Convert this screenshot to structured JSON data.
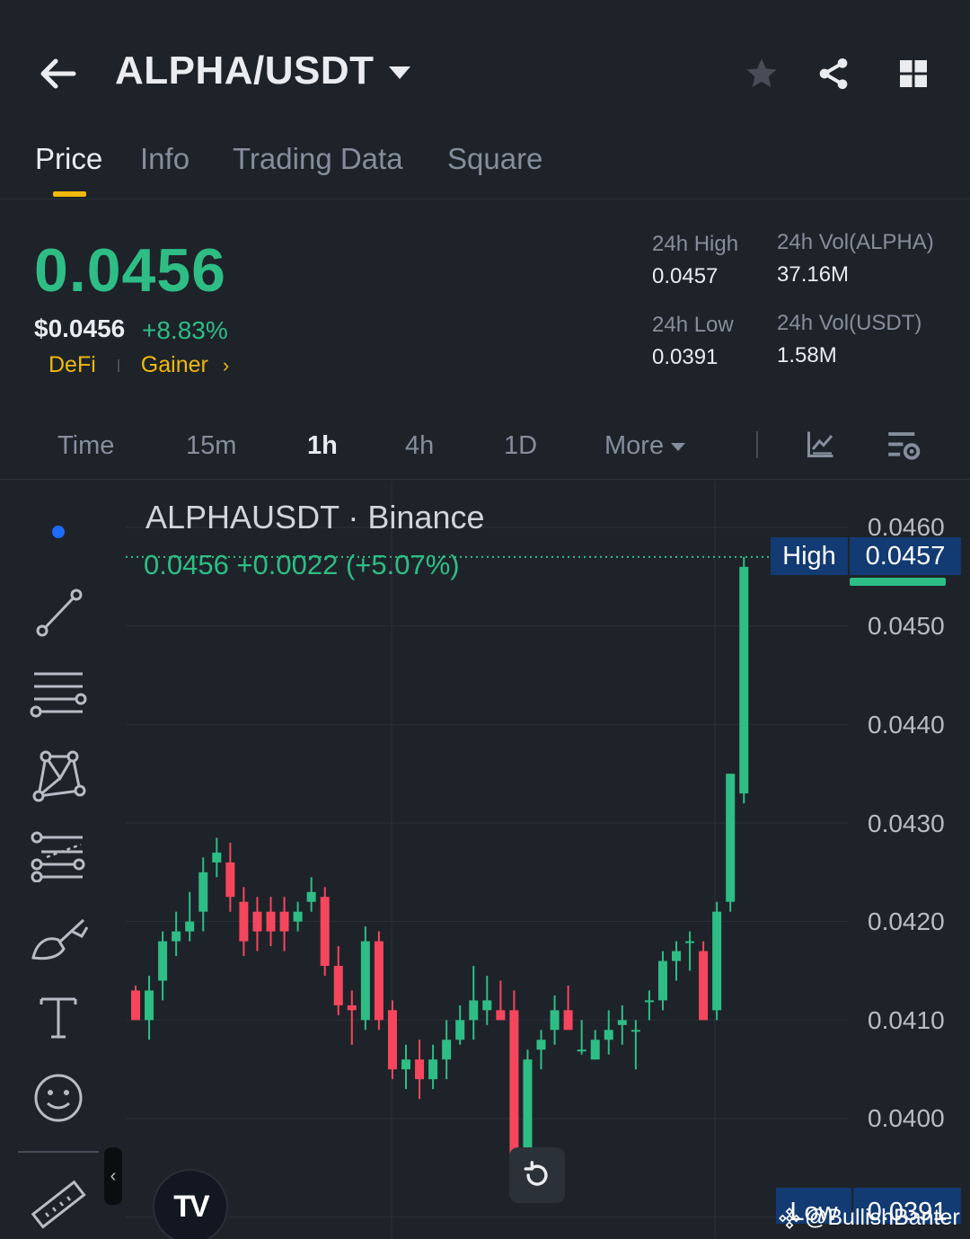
{
  "header": {
    "title": "ALPHA/USDT",
    "icons": [
      "back-arrow-icon",
      "caret-down-icon",
      "star-icon",
      "share-icon",
      "grid-icon"
    ]
  },
  "tabs": [
    {
      "label": "Price",
      "active": true
    },
    {
      "label": "Info",
      "active": false
    },
    {
      "label": "Trading Data",
      "active": false
    },
    {
      "label": "Square",
      "active": false
    }
  ],
  "ticker": {
    "last_price": "0.0456",
    "usd_price": "$0.0456",
    "change_pct": "+8.83%",
    "tags": [
      "DeFi",
      "Gainer"
    ],
    "stats": {
      "high_label": "24h High",
      "high_value": "0.0457",
      "low_label": "24h Low",
      "low_value": "0.0391",
      "vol_alpha_label": "24h Vol(ALPHA)",
      "vol_alpha_value": "37.16M",
      "vol_usdt_label": "24h Vol(USDT)",
      "vol_usdt_value": "1.58M"
    }
  },
  "intervals": [
    {
      "label": "Time",
      "active": false
    },
    {
      "label": "15m",
      "active": false
    },
    {
      "label": "1h",
      "active": true
    },
    {
      "label": "4h",
      "active": false
    },
    {
      "label": "1D",
      "active": false
    },
    {
      "label": "More",
      "active": false
    }
  ],
  "colors": {
    "up": "#2ebd85",
    "down": "#f6465d",
    "accent": "#f0b90b",
    "bg": "#1e2329",
    "badge": "#123a73"
  },
  "chart": {
    "symbol_title": "ALPHAUSDT · Binance",
    "ohlc_text": "0.0456 +0.0022 (+5.07%)",
    "high_label": "High",
    "high_value": "0.0457",
    "low_label": "Low",
    "low_value": "0.0391",
    "watermark": "@BullishBanter"
  },
  "chart_data": {
    "type": "candlestick",
    "title": "ALPHAUSDT · Binance",
    "interval": "1h",
    "y_ticks": [
      "0.0460",
      "0.0450",
      "0.0440",
      "0.0430",
      "0.0420",
      "0.0410",
      "0.0400",
      "0.0391"
    ],
    "ylim": [
      0.0389,
      0.04605
    ],
    "candles": [
      {
        "o": 0.0413,
        "h": 0.04135,
        "l": 0.041,
        "c": 0.041
      },
      {
        "o": 0.041,
        "h": 0.04145,
        "l": 0.0408,
        "c": 0.0413
      },
      {
        "o": 0.0414,
        "h": 0.0419,
        "l": 0.0412,
        "c": 0.0418
      },
      {
        "o": 0.0418,
        "h": 0.0421,
        "l": 0.04165,
        "c": 0.0419
      },
      {
        "o": 0.0419,
        "h": 0.0423,
        "l": 0.0418,
        "c": 0.042
      },
      {
        "o": 0.0421,
        "h": 0.04265,
        "l": 0.0419,
        "c": 0.0425
      },
      {
        "o": 0.0426,
        "h": 0.04285,
        "l": 0.04245,
        "c": 0.0427
      },
      {
        "o": 0.0426,
        "h": 0.0428,
        "l": 0.0421,
        "c": 0.04225
      },
      {
        "o": 0.0422,
        "h": 0.04235,
        "l": 0.04165,
        "c": 0.0418
      },
      {
        "o": 0.0421,
        "h": 0.04225,
        "l": 0.0417,
        "c": 0.0419
      },
      {
        "o": 0.0421,
        "h": 0.04225,
        "l": 0.04175,
        "c": 0.0419
      },
      {
        "o": 0.0421,
        "h": 0.04225,
        "l": 0.0417,
        "c": 0.0419
      },
      {
        "o": 0.042,
        "h": 0.0422,
        "l": 0.0419,
        "c": 0.0421
      },
      {
        "o": 0.0422,
        "h": 0.04245,
        "l": 0.0421,
        "c": 0.0423
      },
      {
        "o": 0.04225,
        "h": 0.04235,
        "l": 0.04145,
        "c": 0.04155
      },
      {
        "o": 0.04155,
        "h": 0.04175,
        "l": 0.04105,
        "c": 0.04115
      },
      {
        "o": 0.04115,
        "h": 0.0413,
        "l": 0.04075,
        "c": 0.0411
      },
      {
        "o": 0.041,
        "h": 0.04195,
        "l": 0.0409,
        "c": 0.0418
      },
      {
        "o": 0.0418,
        "h": 0.0419,
        "l": 0.0409,
        "c": 0.041
      },
      {
        "o": 0.0411,
        "h": 0.0412,
        "l": 0.0404,
        "c": 0.0405
      },
      {
        "o": 0.0405,
        "h": 0.04075,
        "l": 0.0403,
        "c": 0.0406
      },
      {
        "o": 0.0406,
        "h": 0.0408,
        "l": 0.0402,
        "c": 0.0404
      },
      {
        "o": 0.0404,
        "h": 0.04075,
        "l": 0.0403,
        "c": 0.0406
      },
      {
        "o": 0.0406,
        "h": 0.041,
        "l": 0.0404,
        "c": 0.0408
      },
      {
        "o": 0.0408,
        "h": 0.04115,
        "l": 0.04075,
        "c": 0.041
      },
      {
        "o": 0.041,
        "h": 0.04155,
        "l": 0.0408,
        "c": 0.0412
      },
      {
        "o": 0.0411,
        "h": 0.04145,
        "l": 0.04095,
        "c": 0.0412
      },
      {
        "o": 0.0411,
        "h": 0.0414,
        "l": 0.041,
        "c": 0.041
      },
      {
        "o": 0.0411,
        "h": 0.0413,
        "l": 0.03935,
        "c": 0.0395
      },
      {
        "o": 0.0395,
        "h": 0.0407,
        "l": 0.03925,
        "c": 0.0406
      },
      {
        "o": 0.0407,
        "h": 0.0409,
        "l": 0.0405,
        "c": 0.0408
      },
      {
        "o": 0.0409,
        "h": 0.04125,
        "l": 0.04075,
        "c": 0.0411
      },
      {
        "o": 0.0411,
        "h": 0.04135,
        "l": 0.04095,
        "c": 0.0409
      },
      {
        "o": 0.0407,
        "h": 0.041,
        "l": 0.04065,
        "c": 0.0407
      },
      {
        "o": 0.0406,
        "h": 0.0409,
        "l": 0.0406,
        "c": 0.0408
      },
      {
        "o": 0.0408,
        "h": 0.0411,
        "l": 0.04065,
        "c": 0.0409
      },
      {
        "o": 0.04095,
        "h": 0.04115,
        "l": 0.04075,
        "c": 0.041
      },
      {
        "o": 0.0409,
        "h": 0.041,
        "l": 0.0405,
        "c": 0.0409
      },
      {
        "o": 0.0412,
        "h": 0.0413,
        "l": 0.041,
        "c": 0.0412
      },
      {
        "o": 0.0412,
        "h": 0.0417,
        "l": 0.0411,
        "c": 0.0416
      },
      {
        "o": 0.0416,
        "h": 0.0418,
        "l": 0.0414,
        "c": 0.0417
      },
      {
        "o": 0.0418,
        "h": 0.0419,
        "l": 0.0415,
        "c": 0.0418
      },
      {
        "o": 0.0417,
        "h": 0.0418,
        "l": 0.041,
        "c": 0.041
      },
      {
        "o": 0.0411,
        "h": 0.0422,
        "l": 0.041,
        "c": 0.0421
      },
      {
        "o": 0.0422,
        "h": 0.0435,
        "l": 0.0421,
        "c": 0.0435
      },
      {
        "o": 0.0433,
        "h": 0.0457,
        "l": 0.0432,
        "c": 0.0456
      }
    ]
  },
  "tools": [
    "trend-line-icon",
    "horizontal-lines-icon",
    "pattern-icon",
    "fib-icon",
    "brush-icon",
    "text-icon",
    "emoji-icon",
    "ruler-icon"
  ]
}
